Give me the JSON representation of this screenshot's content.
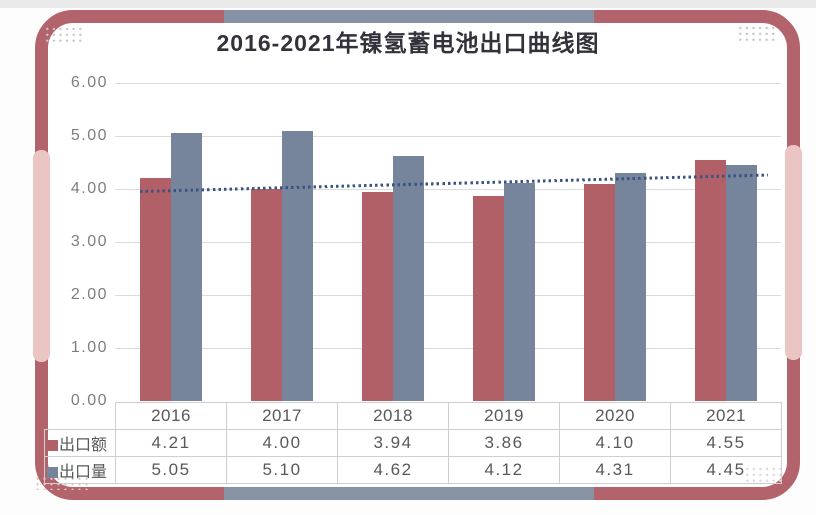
{
  "page": {
    "background": "#fdfdfd",
    "top_strip_color": "#eaeaea"
  },
  "frame": {
    "border_color": "#b2636c",
    "side_accent_color": "#eac5c3",
    "top_bottom_accent_color": "#8593a5",
    "dot_grid_gray": "#c6c6cb",
    "dot_grid_pink": "#ddc8c8",
    "dot_grid_light": "#d9d9d9"
  },
  "chart_data": {
    "type": "bar",
    "title": "2016-2021年镍氢蓄电池出口曲线图",
    "categories": [
      "2016",
      "2017",
      "2018",
      "2019",
      "2020",
      "2021"
    ],
    "series": [
      {
        "name": "出口额",
        "color": "#b06066",
        "values": [
          4.21,
          4.0,
          3.94,
          3.86,
          4.1,
          4.55
        ]
      },
      {
        "name": "出口量",
        "color": "#76859c",
        "values": [
          5.05,
          5.1,
          4.62,
          4.12,
          4.31,
          4.45
        ]
      }
    ],
    "trendline": {
      "on_series": "出口额",
      "style": "dotted",
      "color": "#3a5384"
    },
    "ylim": [
      0,
      6
    ],
    "ytick_step": 1,
    "yticks": [
      "6.00",
      "5.00",
      "4.00",
      "3.00",
      "2.00",
      "1.00",
      "0.00"
    ],
    "grid": true,
    "gridline_color": "#dbdbdb",
    "legend_position": "table-rows-left",
    "data_table_shown": true
  }
}
